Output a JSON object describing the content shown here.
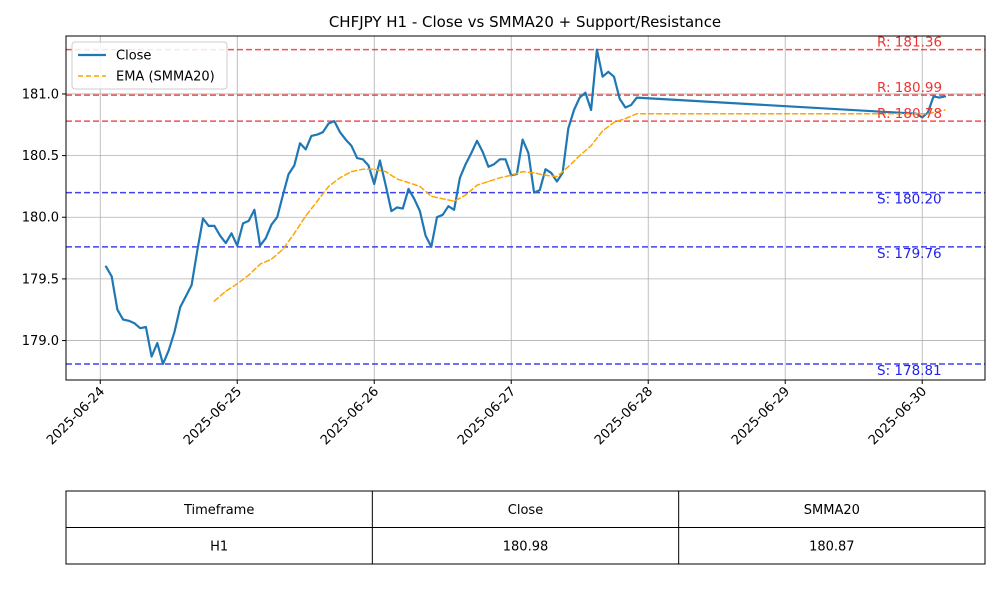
{
  "chart_data": {
    "type": "line",
    "title": "CHFJPY H1 - Close vs SMMA20 + Support/Resistance",
    "xlabel": "",
    "ylabel": "",
    "xlim": [
      "2025-06-23 18:00",
      "2025-06-30 11:00"
    ],
    "ylim": [
      178.68,
      181.47
    ],
    "grid": true,
    "legend_position": "top-left",
    "x_ticks": [
      "2025-06-24",
      "2025-06-25",
      "2025-06-26",
      "2025-06-27",
      "2025-06-28",
      "2025-06-29",
      "2025-06-30"
    ],
    "y_ticks": [
      "179.0",
      "179.5",
      "180.0",
      "180.5",
      "181.0"
    ],
    "series": [
      {
        "name": "Close",
        "color": "#1f77b4",
        "style": "solid",
        "points": [
          [
            "2025-06-24 01:00",
            179.6
          ],
          [
            "2025-06-24 02:00",
            179.52
          ],
          [
            "2025-06-24 03:00",
            179.25
          ],
          [
            "2025-06-24 04:00",
            179.17
          ],
          [
            "2025-06-24 05:00",
            179.16
          ],
          [
            "2025-06-24 06:00",
            179.14
          ],
          [
            "2025-06-24 07:00",
            179.1
          ],
          [
            "2025-06-24 08:00",
            179.11
          ],
          [
            "2025-06-24 09:00",
            178.87
          ],
          [
            "2025-06-24 10:00",
            178.98
          ],
          [
            "2025-06-24 11:00",
            178.81
          ],
          [
            "2025-06-24 12:00",
            178.92
          ],
          [
            "2025-06-24 13:00",
            179.07
          ],
          [
            "2025-06-24 14:00",
            179.27
          ],
          [
            "2025-06-24 15:00",
            179.36
          ],
          [
            "2025-06-24 16:00",
            179.45
          ],
          [
            "2025-06-24 17:00",
            179.73
          ],
          [
            "2025-06-24 18:00",
            179.99
          ],
          [
            "2025-06-24 19:00",
            179.93
          ],
          [
            "2025-06-24 20:00",
            179.93
          ],
          [
            "2025-06-24 21:00",
            179.85
          ],
          [
            "2025-06-24 22:00",
            179.79
          ],
          [
            "2025-06-24 23:00",
            179.87
          ],
          [
            "2025-06-25 00:00",
            179.77
          ],
          [
            "2025-06-25 01:00",
            179.95
          ],
          [
            "2025-06-25 02:00",
            179.97
          ],
          [
            "2025-06-25 03:00",
            180.06
          ],
          [
            "2025-06-25 04:00",
            179.77
          ],
          [
            "2025-06-25 05:00",
            179.83
          ],
          [
            "2025-06-25 06:00",
            179.94
          ],
          [
            "2025-06-25 07:00",
            180.0
          ],
          [
            "2025-06-25 08:00",
            180.18
          ],
          [
            "2025-06-25 09:00",
            180.35
          ],
          [
            "2025-06-25 10:00",
            180.42
          ],
          [
            "2025-06-25 11:00",
            180.6
          ],
          [
            "2025-06-25 12:00",
            180.55
          ],
          [
            "2025-06-25 13:00",
            180.66
          ],
          [
            "2025-06-25 14:00",
            180.67
          ],
          [
            "2025-06-25 15:00",
            180.69
          ],
          [
            "2025-06-25 16:00",
            180.76
          ],
          [
            "2025-06-25 17:00",
            180.78
          ],
          [
            "2025-06-25 18:00",
            180.69
          ],
          [
            "2025-06-25 19:00",
            180.63
          ],
          [
            "2025-06-25 20:00",
            180.58
          ],
          [
            "2025-06-25 21:00",
            180.48
          ],
          [
            "2025-06-25 22:00",
            180.47
          ],
          [
            "2025-06-25 23:00",
            180.42
          ],
          [
            "2025-06-26 00:00",
            180.27
          ],
          [
            "2025-06-26 01:00",
            180.46
          ],
          [
            "2025-06-26 02:00",
            180.26
          ],
          [
            "2025-06-26 03:00",
            180.05
          ],
          [
            "2025-06-26 04:00",
            180.08
          ],
          [
            "2025-06-26 05:00",
            180.07
          ],
          [
            "2025-06-26 06:00",
            180.23
          ],
          [
            "2025-06-26 07:00",
            180.15
          ],
          [
            "2025-06-26 08:00",
            180.05
          ],
          [
            "2025-06-26 09:00",
            179.85
          ],
          [
            "2025-06-26 10:00",
            179.76
          ],
          [
            "2025-06-26 11:00",
            180.0
          ],
          [
            "2025-06-26 12:00",
            180.02
          ],
          [
            "2025-06-26 13:00",
            180.09
          ],
          [
            "2025-06-26 14:00",
            180.06
          ],
          [
            "2025-06-26 15:00",
            180.32
          ],
          [
            "2025-06-26 16:00",
            180.43
          ],
          [
            "2025-06-26 17:00",
            180.52
          ],
          [
            "2025-06-26 18:00",
            180.62
          ],
          [
            "2025-06-26 19:00",
            180.53
          ],
          [
            "2025-06-26 20:00",
            180.41
          ],
          [
            "2025-06-26 21:00",
            180.43
          ],
          [
            "2025-06-26 22:00",
            180.47
          ],
          [
            "2025-06-26 23:00",
            180.47
          ],
          [
            "2025-06-27 00:00",
            180.34
          ],
          [
            "2025-06-27 01:00",
            180.35
          ],
          [
            "2025-06-27 02:00",
            180.63
          ],
          [
            "2025-06-27 03:00",
            180.52
          ],
          [
            "2025-06-27 04:00",
            180.2
          ],
          [
            "2025-06-27 05:00",
            180.22
          ],
          [
            "2025-06-27 06:00",
            180.39
          ],
          [
            "2025-06-27 07:00",
            180.36
          ],
          [
            "2025-06-27 08:00",
            180.29
          ],
          [
            "2025-06-27 09:00",
            180.36
          ],
          [
            "2025-06-27 10:00",
            180.72
          ],
          [
            "2025-06-27 11:00",
            180.87
          ],
          [
            "2025-06-27 12:00",
            180.97
          ],
          [
            "2025-06-27 13:00",
            181.01
          ],
          [
            "2025-06-27 14:00",
            180.87
          ],
          [
            "2025-06-27 15:00",
            181.36
          ],
          [
            "2025-06-27 16:00",
            181.14
          ],
          [
            "2025-06-27 17:00",
            181.18
          ],
          [
            "2025-06-27 18:00",
            181.14
          ],
          [
            "2025-06-27 19:00",
            180.96
          ],
          [
            "2025-06-27 20:00",
            180.89
          ],
          [
            "2025-06-27 21:00",
            180.91
          ],
          [
            "2025-06-27 22:00",
            180.97
          ],
          [
            "2025-06-29 23:00",
            180.84
          ],
          [
            "2025-06-30 00:00",
            180.81
          ],
          [
            "2025-06-30 01:00",
            180.85
          ],
          [
            "2025-06-30 02:00",
            180.98
          ],
          [
            "2025-06-30 03:00",
            180.97
          ],
          [
            "2025-06-30 04:00",
            180.98
          ]
        ]
      },
      {
        "name": "EMA (SMMA20)",
        "color": "#ffa500",
        "style": "dashed",
        "points": [
          [
            "2025-06-24 20:00",
            179.32
          ],
          [
            "2025-06-24 22:00",
            179.4
          ],
          [
            "2025-06-25 00:00",
            179.46
          ],
          [
            "2025-06-25 02:00",
            179.53
          ],
          [
            "2025-06-25 04:00",
            179.62
          ],
          [
            "2025-06-25 06:00",
            179.66
          ],
          [
            "2025-06-25 08:00",
            179.74
          ],
          [
            "2025-06-25 10:00",
            179.87
          ],
          [
            "2025-06-25 12:00",
            180.01
          ],
          [
            "2025-06-25 14:00",
            180.13
          ],
          [
            "2025-06-25 16:00",
            180.25
          ],
          [
            "2025-06-25 18:00",
            180.32
          ],
          [
            "2025-06-25 20:00",
            180.37
          ],
          [
            "2025-06-25 22:00",
            180.39
          ],
          [
            "2025-06-26 00:00",
            180.39
          ],
          [
            "2025-06-26 02:00",
            180.37
          ],
          [
            "2025-06-26 04:00",
            180.31
          ],
          [
            "2025-06-26 06:00",
            180.28
          ],
          [
            "2025-06-26 08:00",
            180.25
          ],
          [
            "2025-06-26 10:00",
            180.17
          ],
          [
            "2025-06-26 12:00",
            180.15
          ],
          [
            "2025-06-26 14:00",
            180.13
          ],
          [
            "2025-06-26 16:00",
            180.18
          ],
          [
            "2025-06-26 18:00",
            180.26
          ],
          [
            "2025-06-26 20:00",
            180.29
          ],
          [
            "2025-06-26 22:00",
            180.32
          ],
          [
            "2025-06-27 00:00",
            180.34
          ],
          [
            "2025-06-27 02:00",
            180.37
          ],
          [
            "2025-06-27 04:00",
            180.36
          ],
          [
            "2025-06-27 06:00",
            180.34
          ],
          [
            "2025-06-27 08:00",
            180.33
          ],
          [
            "2025-06-27 10:00",
            180.41
          ],
          [
            "2025-06-27 12:00",
            180.5
          ],
          [
            "2025-06-27 14:00",
            180.58
          ],
          [
            "2025-06-27 16:00",
            180.7
          ],
          [
            "2025-06-27 18:00",
            180.77
          ],
          [
            "2025-06-27 20:00",
            180.8
          ],
          [
            "2025-06-27 22:00",
            180.84
          ],
          [
            "2025-06-29 23:00",
            180.84
          ],
          [
            "2025-06-30 01:00",
            180.84
          ],
          [
            "2025-06-30 03:00",
            180.86
          ],
          [
            "2025-06-30 04:00",
            180.87
          ]
        ]
      }
    ],
    "resistance_color": "#ee3333",
    "support_color": "#2222ee",
    "levels": [
      {
        "kind": "resistance",
        "value": 181.36,
        "label": "R: 181.36"
      },
      {
        "kind": "resistance",
        "value": 180.99,
        "label": "R: 180.99"
      },
      {
        "kind": "resistance",
        "value": 180.78,
        "label": "R: 180.78"
      },
      {
        "kind": "support",
        "value": 180.2,
        "label": "S: 180.20"
      },
      {
        "kind": "support",
        "value": 179.76,
        "label": "S: 179.76"
      },
      {
        "kind": "support",
        "value": 178.81,
        "label": "S: 178.81"
      }
    ]
  },
  "table": {
    "headers": [
      "Timeframe",
      "Close",
      "SMMA20"
    ],
    "rows": [
      [
        "H1",
        "180.98",
        "180.87"
      ]
    ]
  }
}
